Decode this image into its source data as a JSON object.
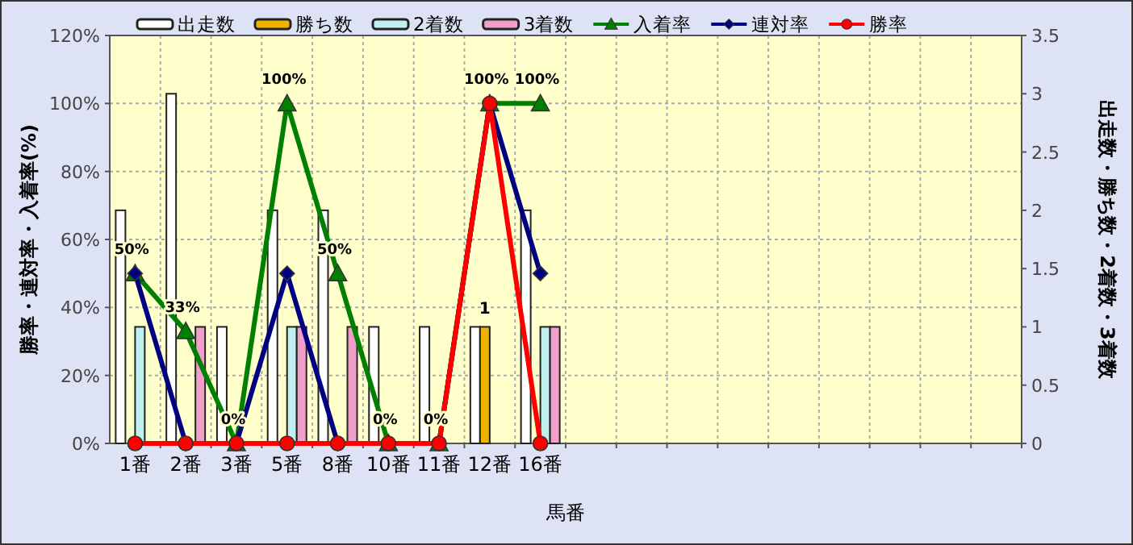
{
  "chart_data": {
    "type": "bar",
    "xlabel": "馬番",
    "ylabel": "勝率・連対率・入着率(%)",
    "y2label": "出走数・勝ち数・2着数・3着数",
    "categories": [
      "1番",
      "2番",
      "3番",
      "5番",
      "8番",
      "10番",
      "11番",
      "12番",
      "16番",
      null,
      null,
      null,
      null,
      null,
      null,
      null,
      null,
      null
    ],
    "series": [
      {
        "name": "出走数",
        "axis": "y2",
        "color": "#ffffff",
        "values": [
          2,
          3,
          1,
          2,
          2,
          1,
          1,
          1,
          2,
          null,
          null,
          null,
          null,
          null,
          null,
          null,
          null,
          null
        ]
      },
      {
        "name": "勝ち数",
        "axis": "y2",
        "color": "#f0b400",
        "values": [
          0,
          0,
          0,
          0,
          0,
          0,
          0,
          1,
          0,
          null,
          null,
          null,
          null,
          null,
          null,
          null,
          null,
          null
        ],
        "value_labels": [
          null,
          null,
          null,
          null,
          null,
          null,
          null,
          "1",
          null,
          null,
          null,
          null,
          null,
          null,
          null,
          null,
          null,
          null
        ]
      },
      {
        "name": "2着数",
        "axis": "y2",
        "color": "#c0f0f0",
        "values": [
          1,
          0,
          0,
          1,
          0,
          0,
          0,
          0,
          1,
          null,
          null,
          null,
          null,
          null,
          null,
          null,
          null,
          null
        ]
      },
      {
        "name": "3着数",
        "axis": "y2",
        "color": "#f0a0c8",
        "values": [
          0,
          1,
          0,
          1,
          1,
          0,
          0,
          0,
          1,
          null,
          null,
          null,
          null,
          null,
          null,
          null,
          null,
          null
        ]
      },
      {
        "name": "入着率",
        "type": "line",
        "color": "#008000",
        "marker": "triangle",
        "values": [
          50,
          33,
          0,
          100,
          50,
          0,
          0,
          100,
          100,
          null,
          null,
          null,
          null,
          null,
          null,
          null,
          null,
          null
        ],
        "value_labels": [
          "50%",
          "33%",
          "0%",
          "100%",
          "50%",
          "0%",
          "0%",
          "100%",
          "100%",
          null,
          null,
          null,
          null,
          null,
          null,
          null,
          null,
          null
        ]
      },
      {
        "name": "連対率",
        "type": "line",
        "color": "#000080",
        "marker": "diamond",
        "values": [
          50,
          0,
          0,
          50,
          0,
          0,
          0,
          100,
          50,
          null,
          null,
          null,
          null,
          null,
          null,
          null,
          null,
          null
        ]
      },
      {
        "name": "勝率",
        "type": "line",
        "color": "#ff0000",
        "marker": "circle",
        "values": [
          0,
          0,
          0,
          0,
          0,
          0,
          0,
          100,
          0,
          null,
          null,
          null,
          null,
          null,
          null,
          null,
          null,
          null
        ]
      }
    ],
    "ylim": [
      0,
      120
    ],
    "yticks": [
      {
        "value": 0,
        "label": "0%"
      },
      {
        "value": 20,
        "label": "20%"
      },
      {
        "value": 40,
        "label": "40%"
      },
      {
        "value": 60,
        "label": "60%"
      },
      {
        "value": 80,
        "label": "80%"
      },
      {
        "value": 100,
        "label": "100%"
      },
      {
        "value": 120,
        "label": "120%"
      }
    ],
    "y2lim": [
      0,
      3.5
    ],
    "y2ticks": [
      0,
      0.5,
      1,
      1.5,
      2,
      2.5,
      3,
      3.5
    ],
    "grid": true,
    "legend": "top"
  }
}
